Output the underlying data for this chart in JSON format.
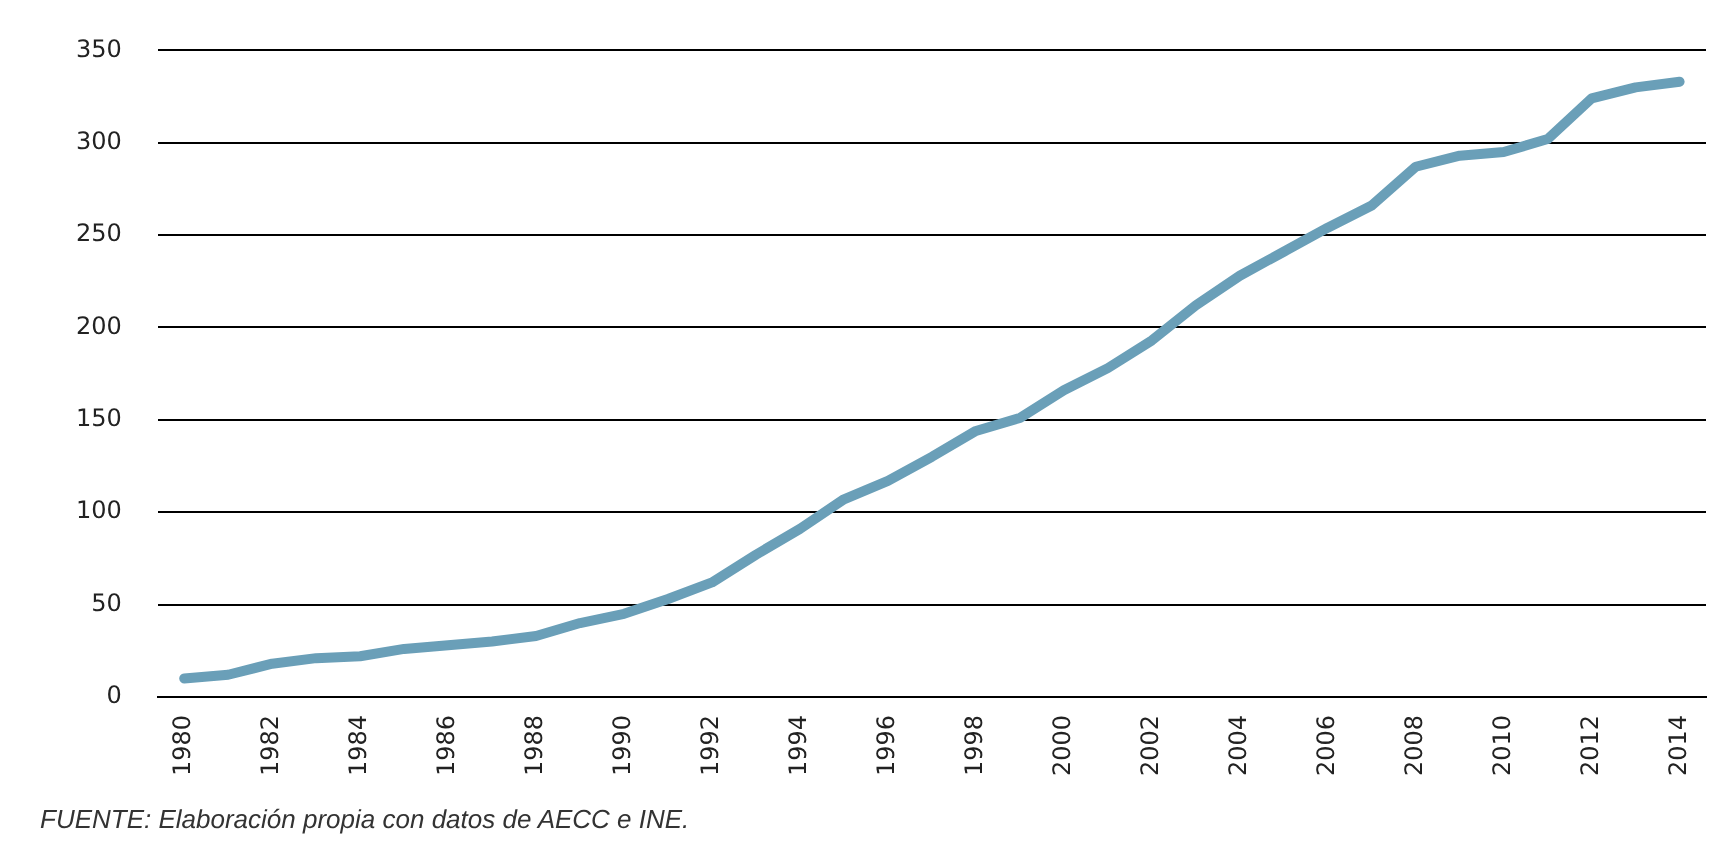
{
  "chart_data": {
    "type": "line",
    "x": [
      1980,
      1981,
      1982,
      1983,
      1984,
      1985,
      1986,
      1987,
      1988,
      1989,
      1990,
      1991,
      1992,
      1993,
      1994,
      1995,
      1996,
      1997,
      1998,
      1999,
      2000,
      2001,
      2002,
      2003,
      2004,
      2005,
      2006,
      2007,
      2008,
      2009,
      2010,
      2011,
      2012,
      2013,
      2014
    ],
    "series": [
      {
        "color": "#6a9fb8",
        "values": [
          10,
          12,
          18,
          21,
          22,
          26,
          28,
          30,
          33,
          40,
          45,
          53,
          62,
          77,
          91,
          107,
          117,
          130,
          144,
          151,
          166,
          178,
          193,
          212,
          228,
          241,
          254,
          266,
          287,
          293,
          295,
          302,
          324,
          330,
          333
        ]
      }
    ],
    "xlim": [
      1979.4,
      2014.6
    ],
    "xticks": [
      1980,
      1982,
      1984,
      1986,
      1988,
      1990,
      1992,
      1994,
      1996,
      1998,
      2000,
      2002,
      2004,
      2006,
      2008,
      2010,
      2012,
      2014
    ],
    "ylim": [
      0,
      350
    ],
    "yticks": [
      0,
      50,
      100,
      150,
      200,
      250,
      300,
      350
    ],
    "grid": "y",
    "marker": "none",
    "line_style": "solid",
    "legend": false,
    "annotations": [
      "FUENTE: Elaboración propia con datos de AECC e INE."
    ]
  }
}
